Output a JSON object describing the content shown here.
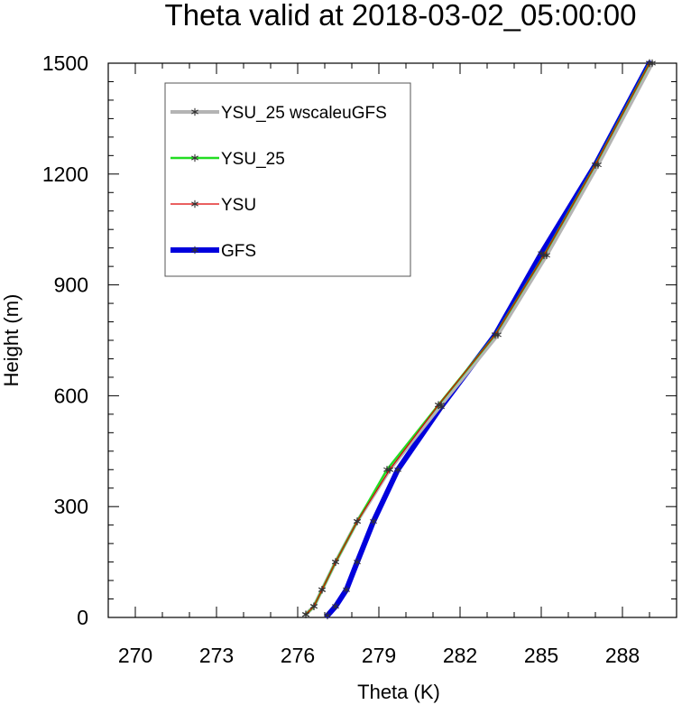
{
  "chart_data": {
    "type": "line",
    "title": "Theta valid at 2018-03-02_05:00:00",
    "xlabel": "Theta (K)",
    "ylabel": "Height (m)",
    "xlim": [
      269,
      290
    ],
    "ylim": [
      0,
      1500
    ],
    "xticks": [
      270,
      273,
      276,
      279,
      282,
      285,
      288
    ],
    "yticks": [
      0,
      300,
      600,
      900,
      1200,
      1500
    ],
    "grid": false,
    "legend_position": "top-left",
    "series": [
      {
        "name": "YSU_25 wscaleuGFS",
        "color": "#b4b4b4",
        "line_width": 4,
        "marker": "asterisk",
        "x": [
          276.3,
          276.6,
          276.9,
          277.4,
          278.2,
          279.4,
          281.3,
          283.4,
          285.2,
          287.1,
          289.1
        ],
        "y": [
          8,
          30,
          75,
          150,
          260,
          400,
          575,
          765,
          980,
          1225,
          1500
        ]
      },
      {
        "name": "YSU_25",
        "color": "#22dd22",
        "line_width": 2.5,
        "marker": "asterisk",
        "x": [
          276.3,
          276.6,
          276.9,
          277.4,
          278.2,
          279.3,
          281.2,
          283.3,
          285.1,
          287.0,
          289.0
        ],
        "y": [
          8,
          30,
          75,
          150,
          260,
          400,
          575,
          765,
          980,
          1225,
          1500
        ]
      },
      {
        "name": "YSU",
        "color": "#dd0000",
        "line_width": 1.2,
        "marker": "asterisk",
        "x": [
          276.3,
          276.6,
          276.9,
          277.4,
          278.2,
          279.4,
          281.2,
          283.3,
          285.1,
          287.0,
          289.0
        ],
        "y": [
          8,
          30,
          75,
          150,
          260,
          400,
          575,
          765,
          980,
          1225,
          1500
        ]
      },
      {
        "name": "GFS",
        "color": "#0000dd",
        "line_width": 6,
        "marker": "asterisk",
        "x": [
          277.1,
          277.4,
          277.8,
          278.2,
          278.8,
          279.7,
          281.3,
          283.3,
          285.0,
          287.0,
          289.0
        ],
        "y": [
          5,
          30,
          75,
          150,
          260,
          400,
          570,
          765,
          985,
          1225,
          1500
        ]
      }
    ],
    "line_series": [
      {
        "name": "YSU_25 wscaleuGFS",
        "x": [
          276.3,
          276.6,
          276.9,
          277.4,
          278.2,
          279.4,
          281.3,
          283.4,
          285.2,
          287.1,
          289.1
        ],
        "y": [
          8,
          30,
          75,
          150,
          260,
          400,
          575,
          765,
          980,
          1225,
          1500
        ]
      }
    ],
    "draw_order": [
      3,
      0,
      1,
      2
    ],
    "legend_order": [
      0,
      1,
      2,
      3
    ]
  }
}
